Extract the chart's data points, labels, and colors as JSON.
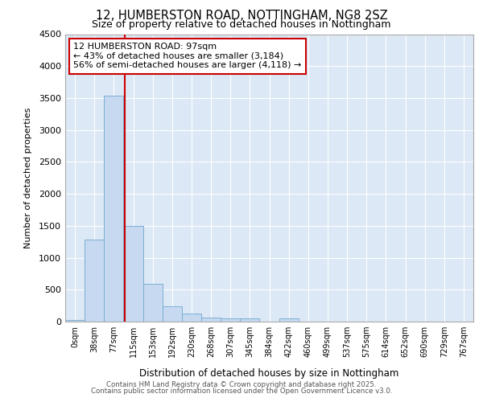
{
  "title_line1": "12, HUMBERSTON ROAD, NOTTINGHAM, NG8 2SZ",
  "title_line2": "Size of property relative to detached houses in Nottingham",
  "xlabel": "Distribution of detached houses by size in Nottingham",
  "ylabel": "Number of detached properties",
  "bin_labels": [
    "0sqm",
    "38sqm",
    "77sqm",
    "115sqm",
    "153sqm",
    "192sqm",
    "230sqm",
    "268sqm",
    "307sqm",
    "345sqm",
    "384sqm",
    "422sqm",
    "460sqm",
    "499sqm",
    "537sqm",
    "575sqm",
    "614sqm",
    "652sqm",
    "690sqm",
    "729sqm",
    "767sqm"
  ],
  "bar_heights": [
    30,
    1280,
    3540,
    1500,
    590,
    240,
    120,
    60,
    45,
    45,
    0,
    45,
    0,
    0,
    0,
    0,
    0,
    0,
    0,
    0,
    0
  ],
  "bar_color": "#c6d9f0",
  "bar_edge_color": "#7bafd4",
  "ylim": [
    0,
    4500
  ],
  "yticks": [
    0,
    500,
    1000,
    1500,
    2000,
    2500,
    3000,
    3500,
    4000,
    4500
  ],
  "property_line_x": 2.57,
  "annotation_text": "12 HUMBERSTON ROAD: 97sqm\n← 43% of detached houses are smaller (3,184)\n56% of semi-detached houses are larger (4,118) →",
  "annotation_box_color": "#ffffff",
  "annotation_box_edge": "#cc0000",
  "red_line_color": "#cc0000",
  "footer_line1": "Contains HM Land Registry data © Crown copyright and database right 2025.",
  "footer_line2": "Contains public sector information licensed under the Open Government Licence v3.0.",
  "fig_bg_color": "#ffffff",
  "plot_bg_color": "#dce8f5",
  "grid_color": "#ffffff"
}
